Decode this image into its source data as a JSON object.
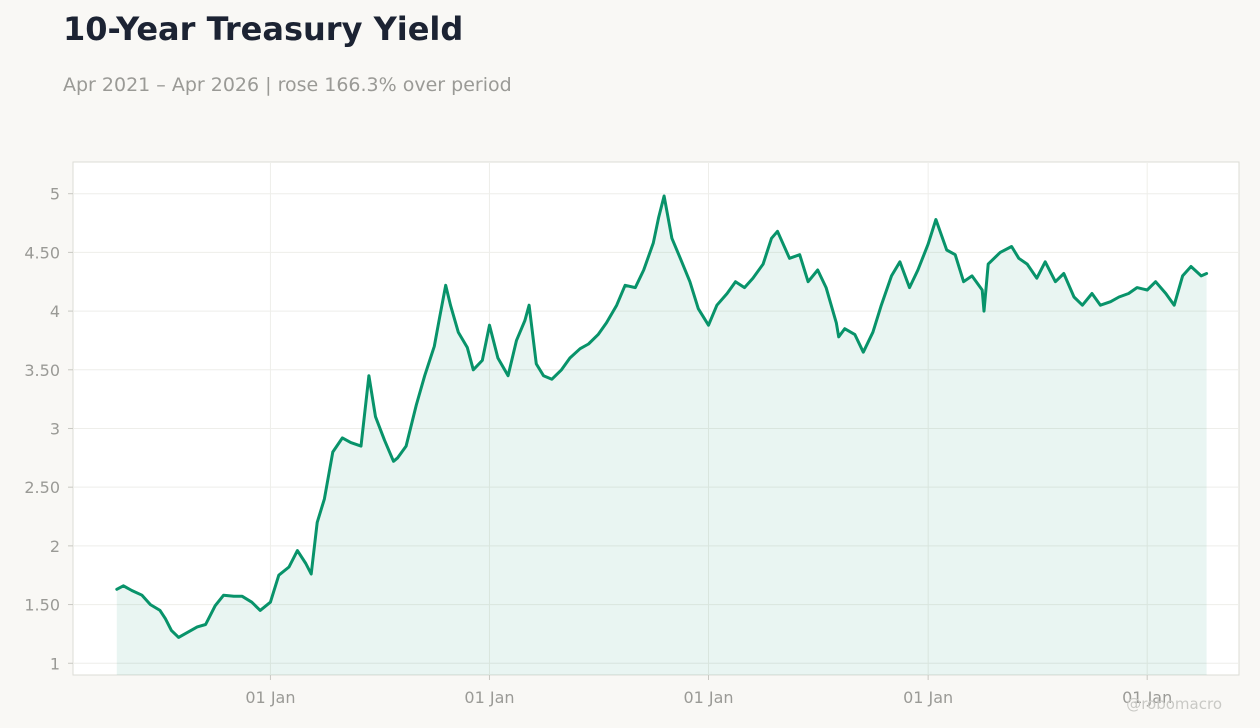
{
  "header": {
    "title": "10-Year Treasury Yield",
    "subtitle": "Apr 2021 – Apr 2026 | rose 166.3% over period"
  },
  "footer": {
    "watermark": "@robomacro"
  },
  "colors": {
    "line": "#08936a",
    "fill": "#08936a",
    "background": "#f9f8f5",
    "plot_background": "#ffffff",
    "grid": "#eeeeea",
    "axis_text": "#9a9a96"
  },
  "chart_data": {
    "type": "area",
    "title": "10-Year Treasury Yield",
    "subtitle": "Apr 2021 – Apr 2026 | rose 166.3% over period",
    "xlabel": "",
    "ylabel": "",
    "ylim": [
      0.9,
      5.27
    ],
    "xlim": [
      "2021-02-06",
      "2026-06-03"
    ],
    "yticks": [
      1,
      1.5,
      2,
      2.5,
      3,
      3.5,
      4,
      4.5,
      5
    ],
    "ytick_labels": [
      "1",
      "1.50",
      "2",
      "2.50",
      "3",
      "3.50",
      "4",
      "4.50",
      "5"
    ],
    "xticks": [
      "2022-01-01",
      "2023-01-01",
      "2024-01-01",
      "2025-01-01",
      "2026-01-01"
    ],
    "xtick_labels": [
      "01 Jan",
      "01 Jan",
      "01 Jan",
      "01 Jan",
      "01 Jan"
    ],
    "grid": true,
    "legend": "none",
    "series": [
      {
        "x": [
          "2021-04-20",
          "2021-05-01",
          "2021-05-15",
          "2021-06-01",
          "2021-06-15",
          "2021-07-01",
          "2021-07-10",
          "2021-07-20",
          "2021-08-01",
          "2021-08-15",
          "2021-09-01",
          "2021-09-15",
          "2021-10-01",
          "2021-10-15",
          "2021-11-01",
          "2021-11-15",
          "2021-12-01",
          "2021-12-15",
          "2022-01-01",
          "2022-01-15",
          "2022-02-01",
          "2022-02-15",
          "2022-03-01",
          "2022-03-10",
          "2022-03-20",
          "2022-04-01",
          "2022-04-15",
          "2022-05-01",
          "2022-05-15",
          "2022-06-01",
          "2022-06-14",
          "2022-06-25",
          "2022-07-10",
          "2022-07-25",
          "2022-08-01",
          "2022-08-15",
          "2022-09-01",
          "2022-09-15",
          "2022-10-01",
          "2022-10-10",
          "2022-10-20",
          "2022-10-28",
          "2022-11-10",
          "2022-11-25",
          "2022-12-05",
          "2022-12-20",
          "2023-01-01",
          "2023-01-15",
          "2023-02-01",
          "2023-02-15",
          "2023-03-01",
          "2023-03-08",
          "2023-03-20",
          "2023-04-01",
          "2023-04-15",
          "2023-05-01",
          "2023-05-15",
          "2023-06-01",
          "2023-06-15",
          "2023-07-01",
          "2023-07-15",
          "2023-08-01",
          "2023-08-15",
          "2023-09-01",
          "2023-09-15",
          "2023-10-01",
          "2023-10-10",
          "2023-10-19",
          "2023-11-01",
          "2023-11-15",
          "2023-12-01",
          "2023-12-15",
          "2024-01-01",
          "2024-01-15",
          "2024-02-01",
          "2024-02-15",
          "2024-03-01",
          "2024-03-15",
          "2024-04-01",
          "2024-04-15",
          "2024-04-25",
          "2024-05-15",
          "2024-06-01",
          "2024-06-15",
          "2024-07-01",
          "2024-07-15",
          "2024-08-01",
          "2024-08-05",
          "2024-08-15",
          "2024-09-01",
          "2024-09-15",
          "2024-10-01",
          "2024-10-15",
          "2024-11-01",
          "2024-11-15",
          "2024-12-01",
          "2024-12-15",
          "2025-01-01",
          "2025-01-14",
          "2025-02-01",
          "2025-02-15",
          "2025-03-01",
          "2025-03-15",
          "2025-04-01",
          "2025-04-04",
          "2025-04-11",
          "2025-05-01",
          "2025-05-20",
          "2025-06-01",
          "2025-06-15",
          "2025-07-01",
          "2025-07-15",
          "2025-08-01",
          "2025-08-15",
          "2025-09-01",
          "2025-09-15",
          "2025-10-01",
          "2025-10-15",
          "2025-11-01",
          "2025-11-15",
          "2025-12-01",
          "2025-12-15",
          "2026-01-01",
          "2026-01-15",
          "2026-02-01",
          "2026-02-15",
          "2026-03-01",
          "2026-03-15",
          "2026-04-01",
          "2026-04-10"
        ],
        "y": [
          1.63,
          1.66,
          1.62,
          1.58,
          1.5,
          1.45,
          1.38,
          1.28,
          1.22,
          1.26,
          1.31,
          1.33,
          1.49,
          1.58,
          1.57,
          1.57,
          1.52,
          1.45,
          1.52,
          1.75,
          1.82,
          1.96,
          1.85,
          1.76,
          2.2,
          2.4,
          2.8,
          2.92,
          2.88,
          2.85,
          3.45,
          3.1,
          2.9,
          2.72,
          2.75,
          2.85,
          3.2,
          3.45,
          3.7,
          3.95,
          4.22,
          4.05,
          3.82,
          3.69,
          3.5,
          3.58,
          3.88,
          3.6,
          3.45,
          3.75,
          3.92,
          4.05,
          3.55,
          3.45,
          3.42,
          3.5,
          3.6,
          3.68,
          3.72,
          3.8,
          3.9,
          4.05,
          4.22,
          4.2,
          4.35,
          4.58,
          4.8,
          4.98,
          4.62,
          4.45,
          4.25,
          4.02,
          3.88,
          4.05,
          4.15,
          4.25,
          4.2,
          4.28,
          4.4,
          4.62,
          4.68,
          4.45,
          4.48,
          4.25,
          4.35,
          4.2,
          3.9,
          3.78,
          3.85,
          3.8,
          3.65,
          3.82,
          4.05,
          4.3,
          4.42,
          4.2,
          4.35,
          4.57,
          4.78,
          4.52,
          4.48,
          4.25,
          4.3,
          4.18,
          4.0,
          4.4,
          4.5,
          4.55,
          4.45,
          4.4,
          4.28,
          4.42,
          4.25,
          4.32,
          4.12,
          4.05,
          4.15,
          4.05,
          4.08,
          4.12,
          4.15,
          4.2,
          4.18,
          4.25,
          4.15,
          4.05,
          4.3,
          4.38,
          4.3,
          4.32
        ]
      }
    ]
  }
}
